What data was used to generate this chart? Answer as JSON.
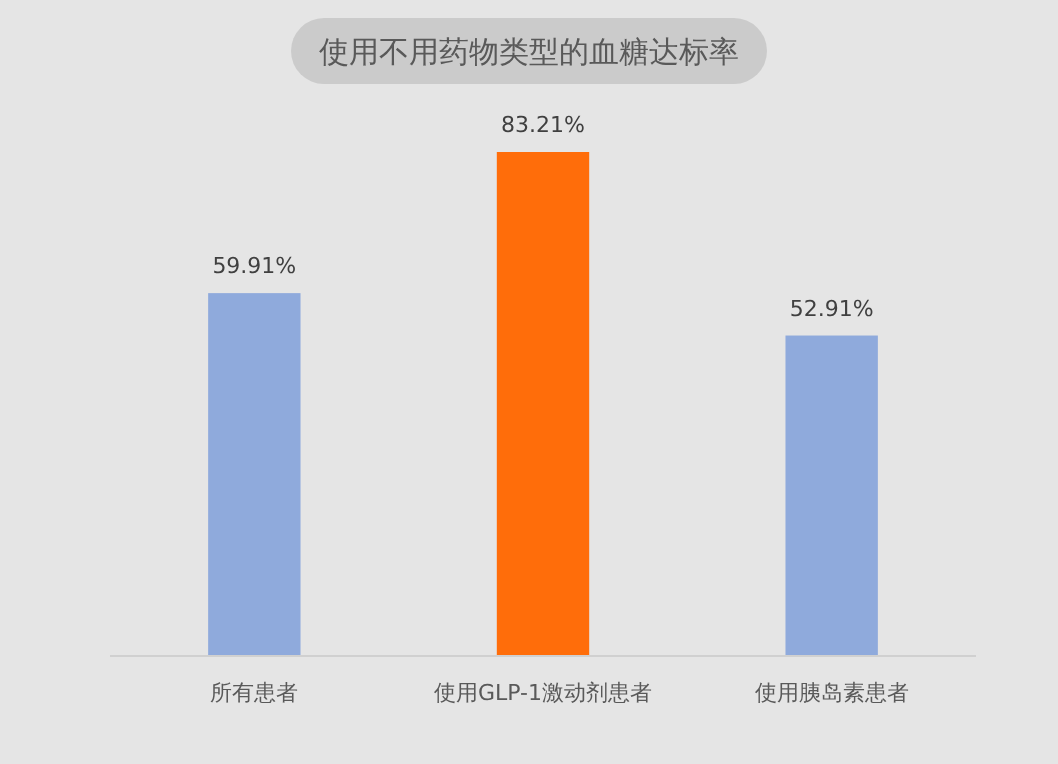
{
  "chart_data": {
    "type": "bar",
    "title": "使用不用药物类型的血糖达标率",
    "categories": [
      "所有患者",
      "使用GLP-1激动剂患者",
      "使用胰岛素患者"
    ],
    "values": [
      59.91,
      83.21,
      52.91
    ],
    "colors": [
      "#8faadc",
      "#ff6d0a",
      "#8faadc"
    ],
    "value_labels": [
      "59.91%",
      "83.21%",
      "52.91%"
    ]
  }
}
